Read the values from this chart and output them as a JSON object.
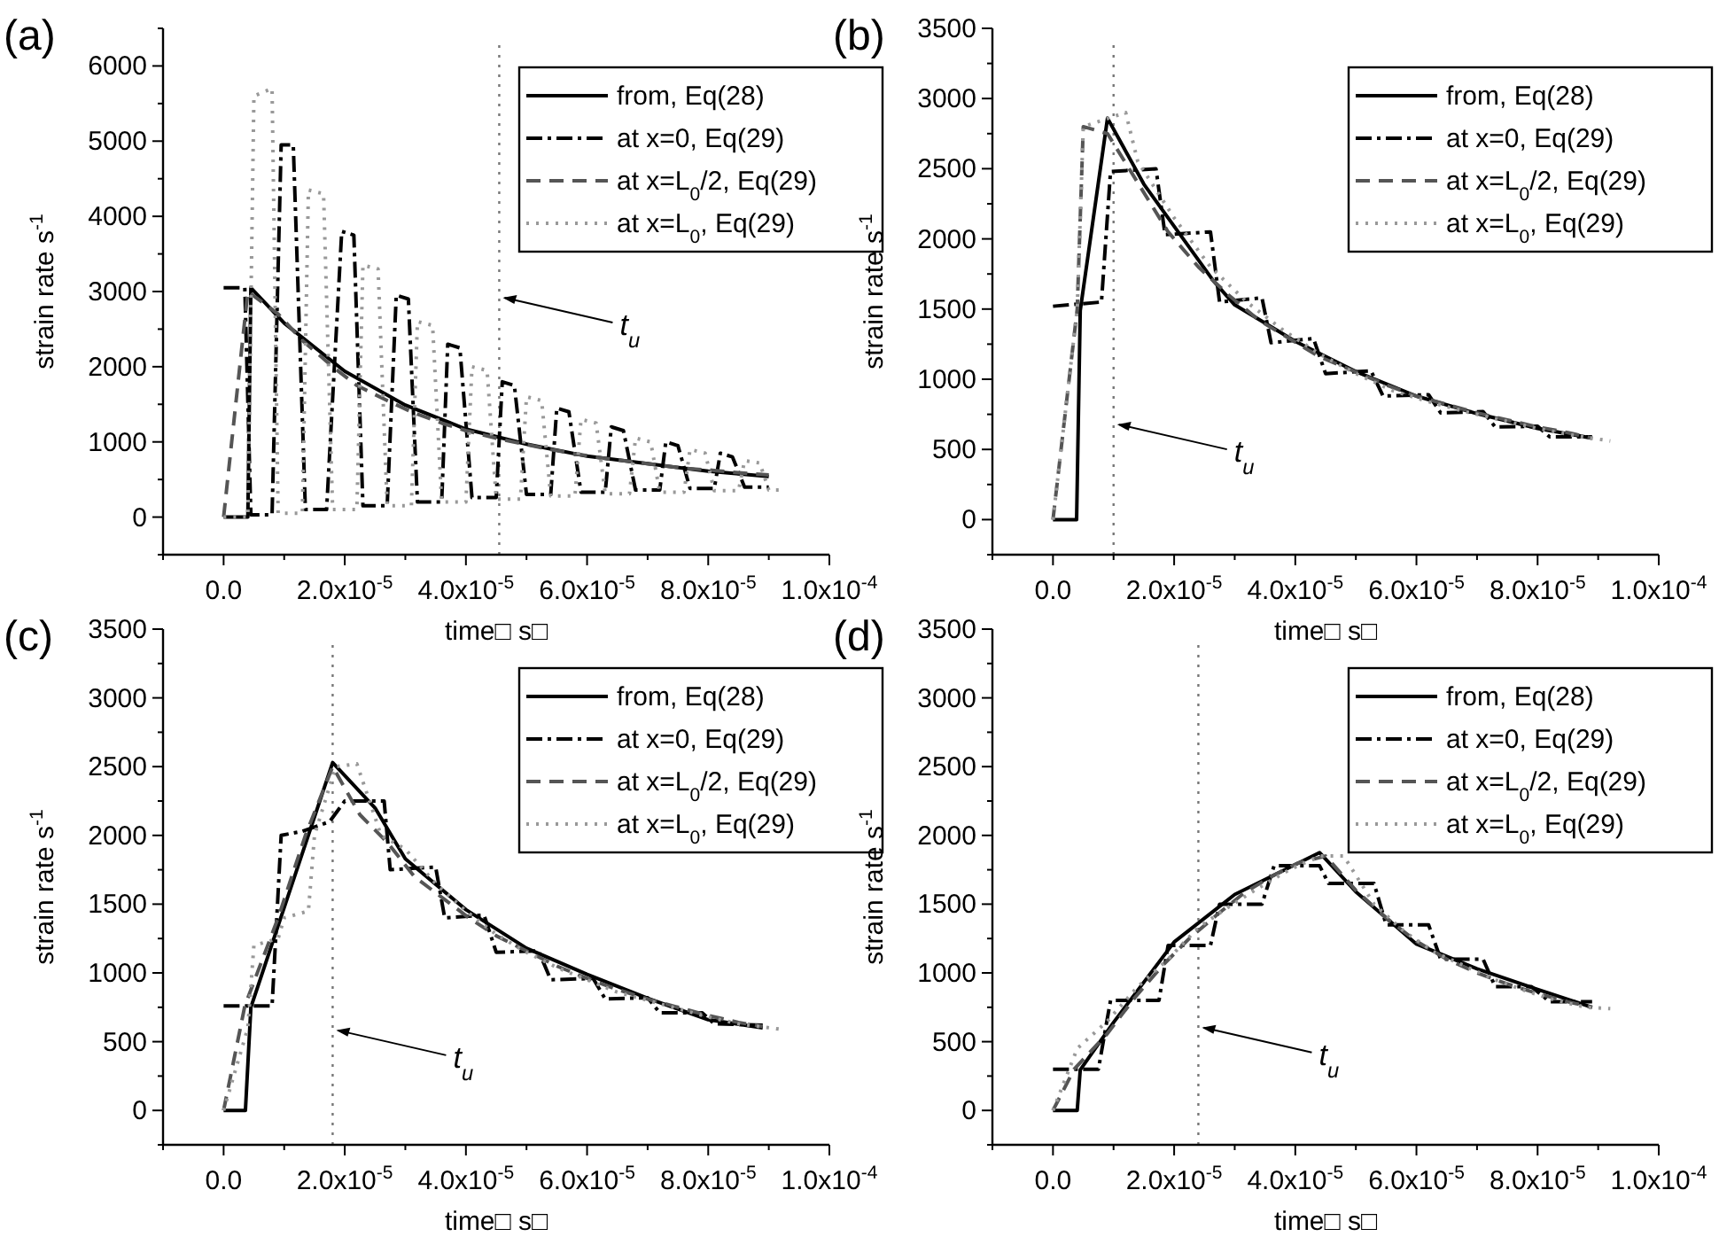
{
  "chart_data": [
    {
      "type": "line",
      "title": "(a)",
      "xlabel": "time□ s□",
      "ylabel": "strain rate  s$^{-1}$",
      "legend": "top right",
      "xlim": [
        -1e-05,
        0.0001
      ],
      "ylim": [
        -500,
        6500
      ],
      "xticks": [
        {
          "value": -1e-05,
          "label": null
        },
        {
          "value": 0,
          "label": "0.0"
        },
        {
          "value": 1e-05,
          "label": null
        },
        {
          "value": 2e-05,
          "label": "2.0x10$^{-5}$"
        },
        {
          "value": 3e-05,
          "label": null
        },
        {
          "value": 4e-05,
          "label": "4.0x10$^{-5}$"
        },
        {
          "value": 5e-05,
          "label": null
        },
        {
          "value": 6e-05,
          "label": "6.0x10$^{-5}$"
        },
        {
          "value": 7e-05,
          "label": null
        },
        {
          "value": 8e-05,
          "label": "8.0x10$^{-5}$"
        },
        {
          "value": 9e-05,
          "label": null
        },
        {
          "value": 0.0001,
          "label": "1.0x10$^{-4}$"
        }
      ],
      "yticks": [
        {
          "value": -500,
          "label": null
        },
        0,
        {
          "value": 500,
          "label": null
        },
        1000,
        {
          "value": 1500,
          "label": null
        },
        2000,
        {
          "value": 2500,
          "label": null
        },
        3000,
        {
          "value": 3500,
          "label": null
        },
        4000,
        {
          "value": 4500,
          "label": null
        },
        5000,
        {
          "value": 5500,
          "label": null
        },
        6000,
        {
          "value": 6500,
          "label": null
        }
      ],
      "series": [
        {
          "name": "from, Eq(28)",
          "color": "#000000",
          "line_style": "solid",
          "x": [
            0,
            4e-06,
            4.5e-06,
            1e-05,
            2e-05,
            3e-05,
            4e-05,
            5e-05,
            6e-05,
            7e-05,
            8e-05,
            9e-05
          ],
          "values": [
            0,
            0,
            3050,
            2580,
            1940,
            1490,
            1170,
            970,
            810,
            710,
            610,
            540
          ]
        },
        {
          "name": "at x=0, Eq(29)",
          "color": "#000000",
          "line_style": "dashdot",
          "x": [
            0,
            3.5e-06,
            4.5e-06,
            8e-06,
            9.5e-06,
            1.15e-05,
            1.35e-05,
            1.7e-05,
            1.95e-05,
            2.15e-05,
            2.3e-05,
            2.7e-05,
            2.85e-05,
            3.05e-05,
            3.2e-05,
            3.6e-05,
            3.7e-05,
            3.9e-05,
            4.1e-05,
            4.5e-05,
            4.6e-05,
            4.8e-05,
            5e-05,
            5.4e-05,
            5.5e-05,
            5.7e-05,
            5.9e-05,
            6.3e-05,
            6.4e-05,
            6.6e-05,
            6.8e-05,
            7.2e-05,
            7.3e-05,
            7.5e-05,
            7.7e-05,
            8.1e-05,
            8.2e-05,
            8.4e-05,
            8.6e-05,
            9e-05
          ],
          "values": [
            3050,
            3050,
            30,
            30,
            4950,
            4950,
            100,
            100,
            3800,
            3750,
            150,
            150,
            2950,
            2900,
            200,
            200,
            2300,
            2250,
            260,
            260,
            1800,
            1750,
            300,
            300,
            1450,
            1400,
            330,
            330,
            1200,
            1150,
            360,
            360,
            1000,
            950,
            380,
            380,
            850,
            800,
            400,
            400
          ]
        },
        {
          "name": "at x=L$_{0}$/2, Eq(29)",
          "color": "#555555",
          "line_style": "dashed",
          "x": [
            0,
            4e-06,
            9e-06,
            1.3e-05,
            1.8e-05,
            2.2e-05,
            2.7e-05,
            3.1e-05,
            3.6e-05,
            4e-05,
            4.5e-05,
            4.9e-05,
            5.4e-05,
            5.8e-05,
            6.3e-05,
            6.7e-05,
            7.2e-05,
            7.6e-05,
            8.1e-05,
            8.5e-05,
            9e-05
          ],
          "values": [
            0,
            3000,
            2700,
            2350,
            2000,
            1750,
            1550,
            1400,
            1250,
            1150,
            1050,
            980,
            900,
            840,
            780,
            740,
            690,
            650,
            620,
            590,
            560
          ]
        },
        {
          "name": "at x=L$_{0}$, Eq(29)",
          "color": "#999999",
          "line_style": "dotted",
          "x": [
            0,
            4e-06,
            5e-06,
            8e-06,
            9e-06,
            1.3e-05,
            1.4e-05,
            1.65e-05,
            1.8e-05,
            2.2e-05,
            2.3e-05,
            2.55e-05,
            2.7e-05,
            3.1e-05,
            3.2e-05,
            3.45e-05,
            3.6e-05,
            4e-05,
            4.1e-05,
            4.35e-05,
            4.5e-05,
            4.9e-05,
            5e-05,
            5.25e-05,
            5.4e-05,
            5.8e-05,
            5.9e-05,
            6.15e-05,
            6.3e-05,
            6.7e-05,
            6.8e-05,
            7.05e-05,
            7.2e-05,
            7.6e-05,
            7.7e-05,
            7.95e-05,
            8.1e-05,
            8.5e-05,
            8.6e-05,
            8.85e-05,
            9e-05,
            9.2e-05
          ],
          "values": [
            0,
            0,
            5600,
            5700,
            50,
            50,
            4350,
            4300,
            100,
            100,
            3350,
            3300,
            150,
            150,
            2600,
            2550,
            200,
            200,
            2000,
            1950,
            240,
            240,
            1600,
            1550,
            280,
            280,
            1300,
            1250,
            310,
            310,
            1050,
            1000,
            330,
            330,
            900,
            850,
            350,
            350,
            750,
            720,
            360,
            360
          ]
        }
      ],
      "ref_lines": [
        {
          "axis": "x",
          "value": 4.55e-05,
          "color": "#777777",
          "line_style": "dotted"
        }
      ],
      "annotations": [
        {
          "text": "t$_{u}$",
          "x": 4.55e-05,
          "y": 2940
        }
      ]
    },
    {
      "type": "line",
      "title": "(b)",
      "xlabel": "time□ s□",
      "ylabel": "strain rate  s$^{-1}$",
      "legend": "top right",
      "xlim": [
        -1e-05,
        0.0001
      ],
      "ylim": [
        -250,
        3500
      ],
      "xticks": [
        {
          "value": -1e-05,
          "label": null
        },
        {
          "value": 0,
          "label": "0.0"
        },
        {
          "value": 1e-05,
          "label": null
        },
        {
          "value": 2e-05,
          "label": "2.0x10$^{-5}$"
        },
        {
          "value": 3e-05,
          "label": null
        },
        {
          "value": 4e-05,
          "label": "4.0x10$^{-5}$"
        },
        {
          "value": 5e-05,
          "label": null
        },
        {
          "value": 6e-05,
          "label": "6.0x10$^{-5}$"
        },
        {
          "value": 7e-05,
          "label": null
        },
        {
          "value": 8e-05,
          "label": "8.0x10$^{-5}$"
        },
        {
          "value": 9e-05,
          "label": null
        },
        {
          "value": 0.0001,
          "label": "1.0x10$^{-4}$"
        }
      ],
      "yticks": [
        {
          "value": -250,
          "label": null
        },
        0,
        {
          "value": 250,
          "label": null
        },
        500,
        {
          "value": 750,
          "label": null
        },
        1000,
        {
          "value": 1250,
          "label": null
        },
        1500,
        {
          "value": 1750,
          "label": null
        },
        2000,
        {
          "value": 2250,
          "label": null
        },
        2500,
        {
          "value": 2750,
          "label": null
        },
        3000,
        {
          "value": 3250,
          "label": null
        },
        3500
      ],
      "series": [
        {
          "name": "from, Eq(28)",
          "color": "#000000",
          "line_style": "solid",
          "x": [
            0,
            3.9e-06,
            4.5e-06,
            9e-06,
            1.5e-05,
            2e-05,
            2.65e-05,
            3e-05,
            4e-05,
            5e-05,
            6e-05,
            7e-05,
            8e-05,
            8.9e-05
          ],
          "values": [
            0,
            0,
            1490,
            2860,
            2390,
            2090,
            1700,
            1530,
            1270,
            1055,
            880,
            755,
            650,
            580
          ]
        },
        {
          "name": "at x=0, Eq(29)",
          "color": "#000000",
          "line_style": "dashdot",
          "x": [
            0,
            8e-06,
            9.5e-06,
            1.7e-05,
            1.85e-05,
            2.6e-05,
            2.75e-05,
            3.45e-05,
            3.6e-05,
            4.3e-05,
            4.5e-05,
            5.25e-05,
            5.45e-05,
            6.2e-05,
            6.4e-05,
            7.1e-05,
            7.3e-05,
            8e-05,
            8.2e-05,
            8.9e-05
          ],
          "values": [
            1520,
            1550,
            2480,
            2500,
            2030,
            2050,
            1550,
            1580,
            1260,
            1290,
            1040,
            1060,
            880,
            890,
            760,
            770,
            660,
            665,
            590,
            590
          ]
        },
        {
          "name": "at x=L$_{0}$/2, Eq(29)",
          "color": "#555555",
          "line_style": "dashed",
          "x": [
            0,
            4e-06,
            5e-06,
            9e-06,
            1.4e-05,
            1.9e-05,
            2.4e-05,
            2.9e-05,
            3.4e-05,
            3.9e-05,
            4.4e-05,
            4.9e-05,
            5.5e-05,
            6e-05,
            6.5e-05,
            7e-05,
            7.5e-05,
            8e-05,
            8.5e-05,
            8.9e-05
          ],
          "values": [
            0,
            1500,
            2800,
            2750,
            2400,
            2050,
            1800,
            1600,
            1420,
            1290,
            1160,
            1070,
            960,
            880,
            820,
            760,
            710,
            660,
            620,
            580
          ]
        },
        {
          "name": "at x=L$_{0}$, Eq(29)",
          "color": "#999999",
          "line_style": "dotted",
          "x": [
            0,
            4e-06,
            5e-06,
            1.2e-05,
            1.4e-05,
            2e-05,
            2.6e-05,
            3.2e-05,
            3.8e-05,
            4.4e-05,
            5e-05,
            5.6e-05,
            6.2e-05,
            6.8e-05,
            7.4e-05,
            8e-05,
            8.6e-05,
            9.2e-05
          ],
          "values": [
            0,
            1500,
            2800,
            2900,
            2550,
            2150,
            1800,
            1550,
            1350,
            1180,
            1040,
            920,
            840,
            770,
            710,
            650,
            600,
            560
          ]
        }
      ],
      "ref_lines": [
        {
          "axis": "x",
          "value": 1e-05,
          "color": "#777777",
          "line_style": "dotted"
        }
      ],
      "annotations": [
        {
          "text": "t$_{u}$",
          "x": 1e-05,
          "y": 690
        }
      ]
    },
    {
      "type": "line",
      "title": "(c)",
      "xlabel": "time□ s□",
      "ylabel": "strain rate  s$^{-1}$",
      "legend": "top right",
      "xlim": [
        -1e-05,
        0.0001
      ],
      "ylim": [
        -250,
        3500
      ],
      "xticks": [
        {
          "value": -1e-05,
          "label": null
        },
        {
          "value": 0,
          "label": "0.0"
        },
        {
          "value": 1e-05,
          "label": null
        },
        {
          "value": 2e-05,
          "label": "2.0x10$^{-5}$"
        },
        {
          "value": 3e-05,
          "label": null
        },
        {
          "value": 4e-05,
          "label": "4.0x10$^{-5}$"
        },
        {
          "value": 5e-05,
          "label": null
        },
        {
          "value": 6e-05,
          "label": "6.0x10$^{-5}$"
        },
        {
          "value": 7e-05,
          "label": null
        },
        {
          "value": 8e-05,
          "label": "8.0x10$^{-5}$"
        },
        {
          "value": 9e-05,
          "label": null
        },
        {
          "value": 0.0001,
          "label": "1.0x10$^{-4}$"
        }
      ],
      "yticks": [
        {
          "value": -250,
          "label": null
        },
        0,
        {
          "value": 250,
          "label": null
        },
        500,
        {
          "value": 750,
          "label": null
        },
        1000,
        {
          "value": 1250,
          "label": null
        },
        1500,
        {
          "value": 1750,
          "label": null
        },
        2000,
        {
          "value": 2250,
          "label": null
        },
        2500,
        {
          "value": 2750,
          "label": null
        },
        3000,
        {
          "value": 3250,
          "label": null
        },
        3500
      ],
      "series": [
        {
          "name": "from, Eq(28)",
          "color": "#000000",
          "line_style": "solid",
          "x": [
            0,
            3.6e-06,
            4.5e-06,
            1.8e-05,
            2.5e-05,
            3e-05,
            4e-05,
            5e-05,
            6e-05,
            7e-05,
            8e-05,
            8.9e-05
          ],
          "values": [
            0,
            0,
            750,
            2530,
            2200,
            1830,
            1460,
            1180,
            990,
            815,
            660,
            600
          ]
        },
        {
          "name": "at x=0, Eq(29)",
          "color": "#000000",
          "line_style": "dashdot",
          "x": [
            0,
            8e-06,
            9.5e-06,
            1.3e-05,
            1.75e-05,
            2e-05,
            2.65e-05,
            2.75e-05,
            3.5e-05,
            3.65e-05,
            4.3e-05,
            4.5e-05,
            5.2e-05,
            5.4e-05,
            6.1e-05,
            6.3e-05,
            7e-05,
            7.2e-05,
            7.9e-05,
            8.1e-05,
            8.9e-05
          ],
          "values": [
            760,
            760,
            2000,
            2030,
            2100,
            2250,
            2250,
            1750,
            1770,
            1400,
            1420,
            1150,
            1160,
            950,
            960,
            810,
            820,
            710,
            710,
            630,
            620
          ]
        },
        {
          "name": "at x=L$_{0}$/2, Eq(29)",
          "color": "#555555",
          "line_style": "dashed",
          "x": [
            0,
            3.5e-06,
            9e-06,
            1.35e-05,
            1.8e-05,
            2.25e-05,
            2.7e-05,
            3.15e-05,
            3.6e-05,
            4.05e-05,
            4.5e-05,
            5e-05,
            5.5e-05,
            6e-05,
            6.5e-05,
            7e-05,
            7.5e-05,
            8e-05,
            8.5e-05,
            8.9e-05
          ],
          "values": [
            0,
            760,
            1400,
            2000,
            2500,
            2150,
            1950,
            1700,
            1550,
            1400,
            1270,
            1160,
            1050,
            960,
            880,
            810,
            750,
            690,
            640,
            610
          ]
        },
        {
          "name": "at x=L$_{0}$, Eq(29)",
          "color": "#999999",
          "line_style": "dotted",
          "x": [
            0,
            4e-06,
            5e-06,
            9e-06,
            1e-05,
            1.4e-05,
            1.5e-05,
            1.85e-05,
            2.2e-05,
            2.6e-05,
            3e-05,
            3.5e-05,
            4e-05,
            4.5e-05,
            5e-05,
            5.5e-05,
            6e-05,
            6.5e-05,
            7e-05,
            7.5e-05,
            8e-05,
            8.5e-05,
            9.2e-05
          ],
          "values": [
            0,
            600,
            1200,
            1250,
            1400,
            1450,
            2000,
            2500,
            2520,
            2000,
            1900,
            1650,
            1450,
            1280,
            1150,
            1040,
            950,
            860,
            800,
            740,
            680,
            630,
            590
          ]
        }
      ],
      "ref_lines": [
        {
          "axis": "x",
          "value": 1.8e-05,
          "color": "#777777",
          "line_style": "dotted"
        }
      ],
      "annotations": [
        {
          "text": "t$_{u}$",
          "x": 1.8e-05,
          "y": 595
        }
      ]
    },
    {
      "type": "line",
      "title": "(d)",
      "xlabel": "time□ s□",
      "ylabel": "strain rate  s$^{-1}$",
      "legend": "top right",
      "xlim": [
        -1e-05,
        0.0001
      ],
      "ylim": [
        -250,
        3500
      ],
      "xticks": [
        {
          "value": -1e-05,
          "label": null
        },
        {
          "value": 0,
          "label": "0.0"
        },
        {
          "value": 1e-05,
          "label": null
        },
        {
          "value": 2e-05,
          "label": "2.0x10$^{-5}$"
        },
        {
          "value": 3e-05,
          "label": null
        },
        {
          "value": 4e-05,
          "label": "4.0x10$^{-5}$"
        },
        {
          "value": 5e-05,
          "label": null
        },
        {
          "value": 6e-05,
          "label": "6.0x10$^{-5}$"
        },
        {
          "value": 7e-05,
          "label": null
        },
        {
          "value": 8e-05,
          "label": "8.0x10$^{-5}$"
        },
        {
          "value": 9e-05,
          "label": null
        },
        {
          "value": 0.0001,
          "label": "1.0x10$^{-4}$"
        }
      ],
      "yticks": [
        {
          "value": -250,
          "label": null
        },
        0,
        {
          "value": 250,
          "label": null
        },
        500,
        {
          "value": 750,
          "label": null
        },
        1000,
        {
          "value": 1250,
          "label": null
        },
        1500,
        {
          "value": 1750,
          "label": null
        },
        2000,
        {
          "value": 2250,
          "label": null
        },
        2500,
        {
          "value": 2750,
          "label": null
        },
        3000,
        {
          "value": 3250,
          "label": null
        },
        3500
      ],
      "series": [
        {
          "name": "from, Eq(28)",
          "color": "#000000",
          "line_style": "solid",
          "x": [
            0,
            4e-06,
            4.5e-06,
            1e-05,
            2e-05,
            3e-05,
            4.4e-05,
            5e-05,
            6e-05,
            7e-05,
            8e-05,
            8.9e-05
          ],
          "values": [
            0,
            0,
            295,
            640,
            1225,
            1570,
            1875,
            1590,
            1210,
            1030,
            880,
            750
          ]
        },
        {
          "name": "at x=0, Eq(29)",
          "color": "#000000",
          "line_style": "dashdot",
          "x": [
            0,
            7.5e-06,
            9.5e-06,
            1.75e-05,
            1.9e-05,
            2.6e-05,
            2.75e-05,
            3.45e-05,
            3.65e-05,
            4.4e-05,
            4.55e-05,
            5.3e-05,
            5.5e-05,
            6.2e-05,
            6.4e-05,
            7.1e-05,
            7.3e-05,
            7.9e-05,
            8.2e-05,
            8.9e-05
          ],
          "values": [
            300,
            300,
            800,
            800,
            1200,
            1200,
            1500,
            1500,
            1780,
            1780,
            1650,
            1650,
            1350,
            1350,
            1100,
            1100,
            900,
            900,
            790,
            790
          ]
        },
        {
          "name": "at x=L$_{0}$/2, Eq(29)",
          "color": "#555555",
          "line_style": "dashed",
          "x": [
            0,
            3.5e-06,
            9e-06,
            1.35e-05,
            1.8e-05,
            2.25e-05,
            2.7e-05,
            3.15e-05,
            3.6e-05,
            4.05e-05,
            4.5e-05,
            5e-05,
            5.5e-05,
            6e-05,
            6.5e-05,
            7e-05,
            7.5e-05,
            8e-05,
            8.5e-05,
            8.9e-05
          ],
          "values": [
            0,
            300,
            560,
            820,
            1050,
            1250,
            1420,
            1580,
            1700,
            1800,
            1850,
            1600,
            1400,
            1230,
            1100,
            1000,
            920,
            850,
            790,
            750
          ]
        },
        {
          "name": "at x=L$_{0}$, Eq(29)",
          "color": "#999999",
          "line_style": "dotted",
          "x": [
            0,
            4e-06,
            9e-06,
            1.4e-05,
            1.9e-05,
            2.4e-05,
            2.9e-05,
            3.4e-05,
            3.9e-05,
            4.4e-05,
            4.8e-05,
            5.3e-05,
            5.8e-05,
            6.3e-05,
            6.8e-05,
            7.3e-05,
            7.8e-05,
            8.3e-05,
            8.8e-05,
            9.2e-05
          ],
          "values": [
            0,
            450,
            650,
            900,
            1100,
            1330,
            1480,
            1620,
            1750,
            1850,
            1850,
            1500,
            1300,
            1150,
            1050,
            950,
            870,
            800,
            750,
            740
          ]
        }
      ],
      "ref_lines": [
        {
          "axis": "x",
          "value": 2.4e-05,
          "color": "#777777",
          "line_style": "dotted"
        }
      ],
      "annotations": [
        {
          "text": "t$_{u}$",
          "x": 2.4e-05,
          "y": 615
        }
      ]
    }
  ]
}
